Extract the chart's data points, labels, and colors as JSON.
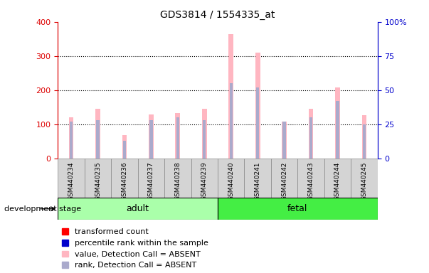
{
  "title": "GDS3814 / 1554335_at",
  "samples": [
    "GSM440234",
    "GSM440235",
    "GSM440236",
    "GSM440237",
    "GSM440238",
    "GSM440239",
    "GSM440240",
    "GSM440241",
    "GSM440242",
    "GSM440243",
    "GSM440244",
    "GSM440245"
  ],
  "transformed_count": [
    120,
    145,
    68,
    128,
    133,
    145,
    365,
    310,
    107,
    145,
    207,
    127
  ],
  "percentile_rank": [
    27,
    28,
    13,
    28,
    30,
    28,
    55,
    52,
    27,
    30,
    42,
    25
  ],
  "ylim_left": [
    0,
    400
  ],
  "ylim_right": [
    0,
    100
  ],
  "yticks_left": [
    0,
    100,
    200,
    300,
    400
  ],
  "yticks_right": [
    0,
    25,
    50,
    75,
    100
  ],
  "yticklabels_right": [
    "0",
    "25",
    "50",
    "75",
    "100%"
  ],
  "bar_color_pink": "#FFB6C1",
  "bar_color_lightblue": "#AAAACC",
  "bar_color_red": "#FF0000",
  "bar_color_blue": "#0000CC",
  "left_axis_color": "#DD0000",
  "right_axis_color": "#0000CC",
  "adult_color": "#AAFFAA",
  "fetal_color": "#44EE44",
  "adult_label": "adult",
  "fetal_label": "fetal",
  "adult_samples": [
    0,
    1,
    2,
    3,
    4,
    5
  ],
  "fetal_samples": [
    6,
    7,
    8,
    9,
    10,
    11
  ],
  "title_fontsize": 10,
  "tick_fontsize": 8,
  "legend_fontsize": 8,
  "development_stage_label": "development stage",
  "legend_labels": [
    "transformed count",
    "percentile rank within the sample",
    "value, Detection Call = ABSENT",
    "rank, Detection Call = ABSENT"
  ],
  "legend_colors": [
    "#FF0000",
    "#0000CC",
    "#FFB6C1",
    "#AAAACC"
  ]
}
